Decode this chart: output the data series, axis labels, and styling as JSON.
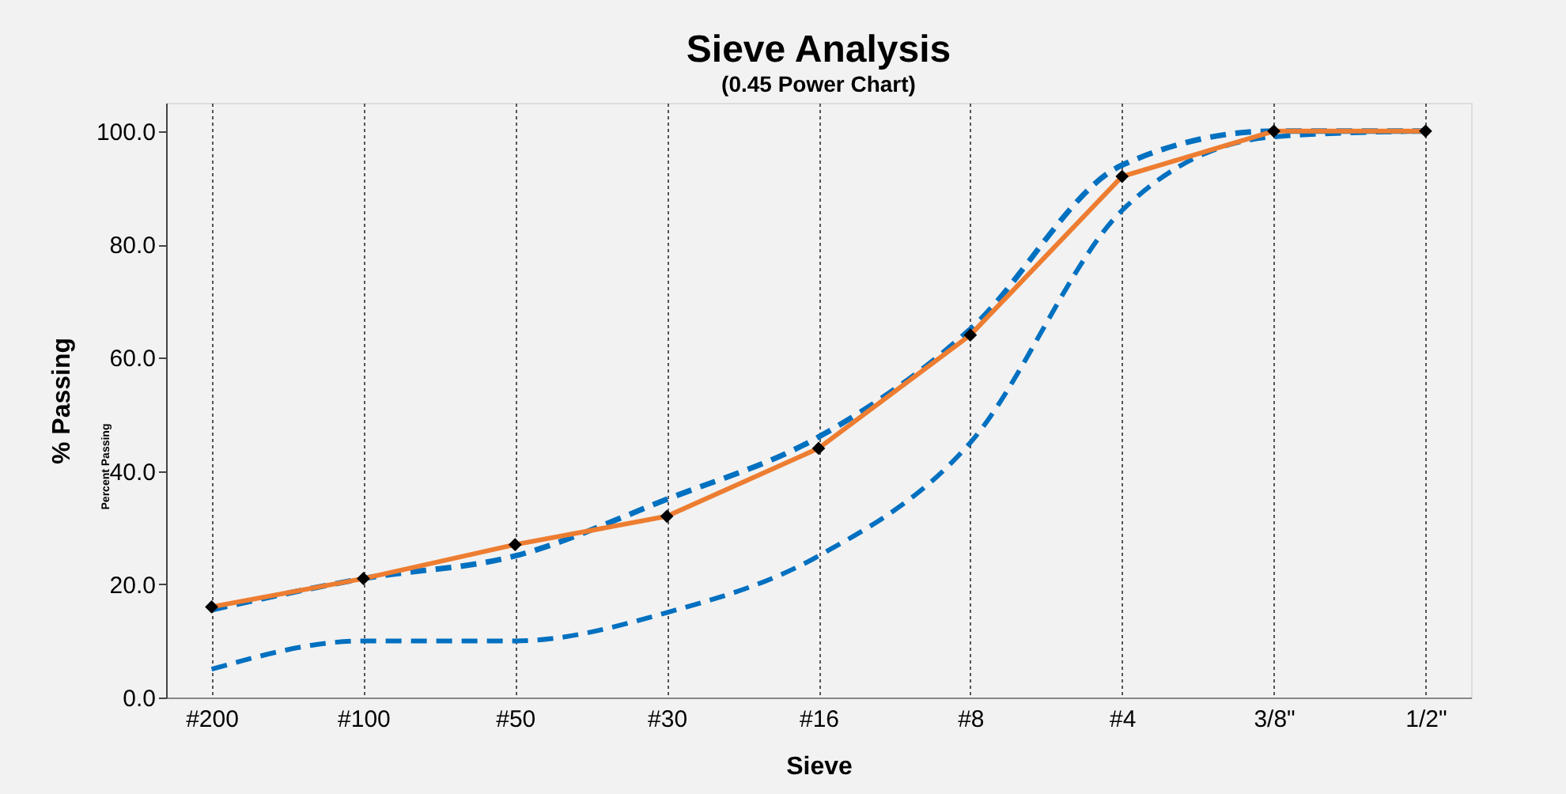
{
  "chart_data": {
    "type": "line",
    "title": "Sieve Analysis",
    "subtitle": "(0.45 Power Chart)",
    "xlabel": "Sieve",
    "ylabel": "% Passing",
    "annotations": [
      "Percent Passing"
    ],
    "categories": [
      "#200",
      "#100",
      "#50",
      "#30",
      "#16",
      "#8",
      "#4",
      "3/8\"",
      "1/2\""
    ],
    "ylim": [
      0,
      105
    ],
    "yticks": [
      {
        "value": 0,
        "label": "0.0"
      },
      {
        "value": 20,
        "label": "20.0"
      },
      {
        "value": 40,
        "label": "40.0"
      },
      {
        "value": 60,
        "label": "60.0"
      },
      {
        "value": 80,
        "label": "80.0"
      },
      {
        "value": 100,
        "label": "100.0"
      }
    ],
    "grid": "x",
    "series": [
      {
        "color": "#0070c0",
        "line_style": "dashed",
        "marker": "none",
        "values": [
          15.5,
          21,
          25,
          35,
          46,
          65,
          94,
          100,
          100
        ]
      },
      {
        "color": "#0070c0",
        "line_style": "dashed",
        "marker": "none",
        "values": [
          5,
          10,
          10,
          15,
          25,
          45,
          86,
          99,
          100
        ]
      },
      {
        "color": "#ed7d31",
        "line_style": "solid",
        "marker": "diamond",
        "values": [
          16,
          21,
          27,
          32,
          44,
          64,
          92,
          100,
          100
        ]
      }
    ]
  }
}
